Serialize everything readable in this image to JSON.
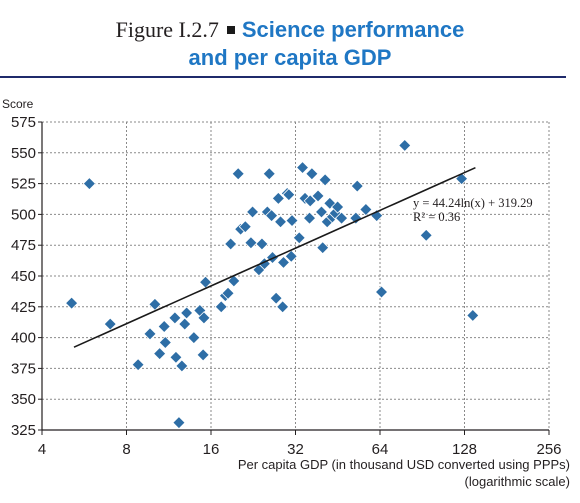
{
  "figure": {
    "label": "Figure I.2.7",
    "title_line1": "Science performance",
    "title_line2": "and per capita GDP"
  },
  "chart_data": {
    "type": "scatter",
    "ylabel": "Score",
    "xlabel_line1": "Per capita GDP (in thousand USD converted using PPPs)",
    "xlabel_line2": "(logarithmic scale)",
    "x_scale": "log2",
    "xlim": [
      4,
      256
    ],
    "ylim": [
      325,
      575
    ],
    "x_ticks": [
      4,
      8,
      16,
      32,
      64,
      128,
      256
    ],
    "y_ticks": [
      325,
      350,
      375,
      400,
      425,
      450,
      475,
      500,
      525,
      550,
      575
    ],
    "grid": true,
    "marker_color": "#2e6ea6",
    "trendline": {
      "equation": "y = 44.24ln(x) + 319.29",
      "r_squared": "R² = 0.36",
      "a": 44.24,
      "b": 319.29,
      "x_range": [
        5.2,
        140
      ]
    },
    "points": [
      [
        5.1,
        428
      ],
      [
        5.9,
        525
      ],
      [
        7.0,
        411
      ],
      [
        8.8,
        378
      ],
      [
        9.7,
        403
      ],
      [
        10.1,
        427
      ],
      [
        10.5,
        387
      ],
      [
        10.9,
        409
      ],
      [
        11.0,
        396
      ],
      [
        11.9,
        416
      ],
      [
        12.0,
        384
      ],
      [
        12.3,
        331
      ],
      [
        12.6,
        377
      ],
      [
        12.9,
        411
      ],
      [
        13.1,
        420
      ],
      [
        13.9,
        400
      ],
      [
        14.6,
        422
      ],
      [
        15.0,
        386
      ],
      [
        15.1,
        416
      ],
      [
        15.3,
        445
      ],
      [
        17.4,
        425
      ],
      [
        18.0,
        434
      ],
      [
        18.4,
        436
      ],
      [
        18.8,
        476
      ],
      [
        19.3,
        446
      ],
      [
        20.0,
        533
      ],
      [
        20.4,
        488
      ],
      [
        21.2,
        490
      ],
      [
        22.2,
        477
      ],
      [
        22.5,
        502
      ],
      [
        23.7,
        455
      ],
      [
        24.3,
        476
      ],
      [
        24.8,
        460
      ],
      [
        25.4,
        502
      ],
      [
        25.8,
        533
      ],
      [
        26.3,
        499
      ],
      [
        26.5,
        465
      ],
      [
        27.3,
        432
      ],
      [
        27.8,
        513
      ],
      [
        28.3,
        494
      ],
      [
        28.8,
        425
      ],
      [
        29.0,
        461
      ],
      [
        29.9,
        517
      ],
      [
        30.3,
        516
      ],
      [
        30.9,
        466
      ],
      [
        31.1,
        495
      ],
      [
        33.0,
        481
      ],
      [
        33.9,
        538
      ],
      [
        34.6,
        513
      ],
      [
        35.9,
        497
      ],
      [
        36.1,
        511
      ],
      [
        36.6,
        533
      ],
      [
        38.5,
        515
      ],
      [
        39.6,
        502
      ],
      [
        40.0,
        473
      ],
      [
        40.8,
        528
      ],
      [
        41.5,
        494
      ],
      [
        42.4,
        509
      ],
      [
        43.3,
        498
      ],
      [
        44.3,
        501
      ],
      [
        45.2,
        506
      ],
      [
        46.7,
        497
      ],
      [
        52.5,
        497
      ],
      [
        53.1,
        523
      ],
      [
        57.0,
        504
      ],
      [
        62.3,
        499
      ],
      [
        64.8,
        437
      ],
      [
        78.4,
        556
      ],
      [
        93.5,
        483
      ],
      [
        125.0,
        529
      ],
      [
        137.0,
        418
      ]
    ]
  }
}
